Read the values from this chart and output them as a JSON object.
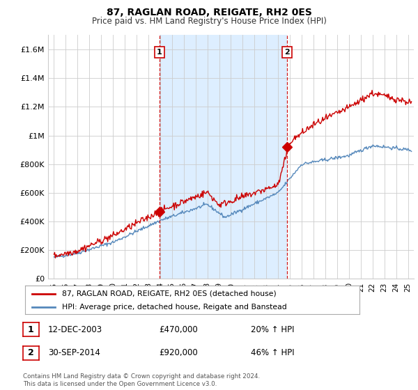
{
  "title": "87, RAGLAN ROAD, REIGATE, RH2 0ES",
  "subtitle": "Price paid vs. HM Land Registry's House Price Index (HPI)",
  "legend_line1": "87, RAGLAN ROAD, REIGATE, RH2 0ES (detached house)",
  "legend_line2": "HPI: Average price, detached house, Reigate and Banstead",
  "annotation1_date": "12-DEC-2003",
  "annotation1_price": "£470,000",
  "annotation1_hpi": "20% ↑ HPI",
  "annotation2_date": "30-SEP-2014",
  "annotation2_price": "£920,000",
  "annotation2_hpi": "46% ↑ HPI",
  "footer": "Contains HM Land Registry data © Crown copyright and database right 2024.\nThis data is licensed under the Open Government Licence v3.0.",
  "red_color": "#cc0000",
  "blue_color": "#5588bb",
  "shade_color": "#ddeeff",
  "ylim": [
    0,
    1700000
  ],
  "yticks": [
    0,
    200000,
    400000,
    600000,
    800000,
    1000000,
    1200000,
    1400000,
    1600000
  ],
  "ytick_labels": [
    "£0",
    "£200K",
    "£400K",
    "£600K",
    "£800K",
    "£1M",
    "£1.2M",
    "£1.4M",
    "£1.6M"
  ],
  "xmin": 1994.5,
  "xmax": 2025.5,
  "purchase1_x": 2003.95,
  "purchase1_y": 470000,
  "purchase2_x": 2014.75,
  "purchase2_y": 920000,
  "bg_color": "#ffffff",
  "grid_color": "#cccccc"
}
